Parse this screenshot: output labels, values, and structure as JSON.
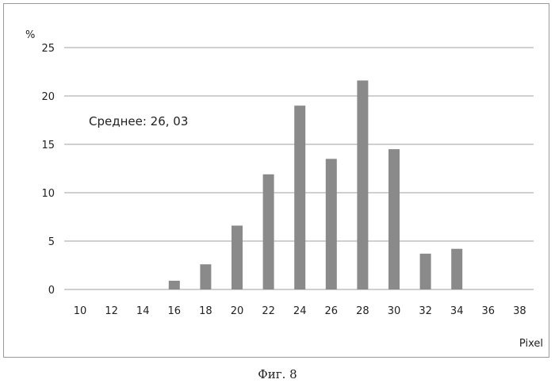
{
  "chart_data": {
    "type": "bar",
    "categories": [
      "10",
      "12",
      "14",
      "16",
      "18",
      "20",
      "22",
      "24",
      "26",
      "28",
      "30",
      "32",
      "34",
      "36",
      "38"
    ],
    "values": [
      0,
      0,
      0,
      0.9,
      2.6,
      6.6,
      11.9,
      19.0,
      13.5,
      21.6,
      14.5,
      3.7,
      4.2,
      0,
      0
    ],
    "xlabel": "Pixel",
    "ylabel": "%",
    "ylim": [
      0,
      25
    ],
    "yticks": [
      "0",
      "5",
      "10",
      "15",
      "20",
      "25"
    ],
    "grid": true,
    "legend": "none",
    "annotation": "Среднее: 26, 03",
    "bar_color": "#8a8a8a",
    "grid_color": "#a0a0a0"
  },
  "caption": "Фиг. 8"
}
